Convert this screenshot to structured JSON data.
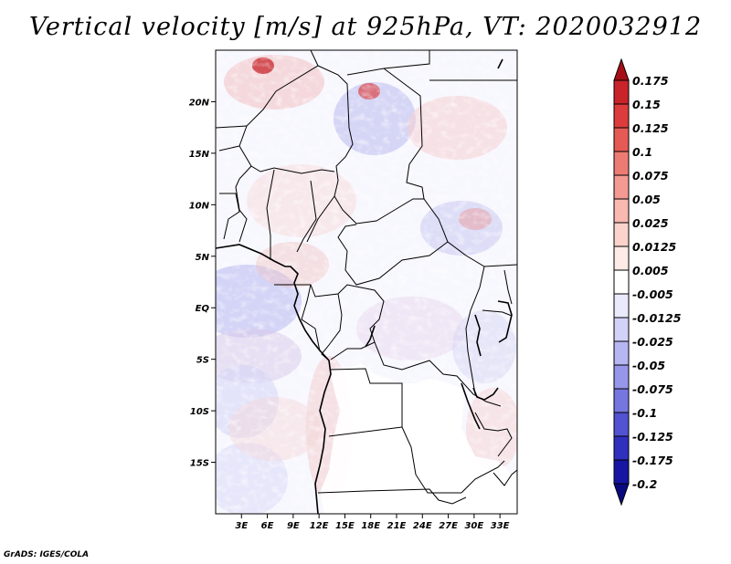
{
  "title": "Vertical velocity [m/s] at 925hPa, VT: 2020032912",
  "credit": "GrADS: IGES/COLA",
  "map": {
    "variable": "Vertical velocity",
    "units": "m/s",
    "level": "925hPa",
    "valid_time": "2020032912",
    "lat_labels": [
      "20N",
      "15N",
      "10N",
      "5N",
      "EQ",
      "5S",
      "10S",
      "15S"
    ],
    "lat_values": [
      20,
      15,
      10,
      5,
      0,
      -5,
      -10,
      -15
    ],
    "lon_labels": [
      "3E",
      "6E",
      "9E",
      "12E",
      "15E",
      "18E",
      "21E",
      "24E",
      "27E",
      "30E",
      "33E"
    ],
    "lon_values": [
      3,
      6,
      9,
      12,
      15,
      18,
      21,
      24,
      27,
      30,
      33
    ],
    "lon_range": [
      0,
      35
    ],
    "lat_range": [
      -20,
      25
    ]
  },
  "colorbar": {
    "labels": [
      "0.175",
      "0.15",
      "0.125",
      "0.1",
      "0.075",
      "0.05",
      "0.025",
      "0.0125",
      "0.005",
      "-0.005",
      "-0.0125",
      "-0.025",
      "-0.05",
      "-0.075",
      "-0.1",
      "-0.125",
      "-0.175",
      "-0.2"
    ],
    "colors": [
      "#a50f15",
      "#c8242a",
      "#dc3c3c",
      "#e65a55",
      "#ee7b73",
      "#f49a92",
      "#f9b8b0",
      "#fcd3cc",
      "#feeae6",
      "#ffffff",
      "#eaeafc",
      "#d2d2f8",
      "#b6b6f2",
      "#9696ea",
      "#7676e0",
      "#5252d2",
      "#3030be",
      "#1616a2",
      "#0a0a80"
    ]
  },
  "colors": {
    "land_blank": "#ffffff",
    "border": "#000000"
  }
}
